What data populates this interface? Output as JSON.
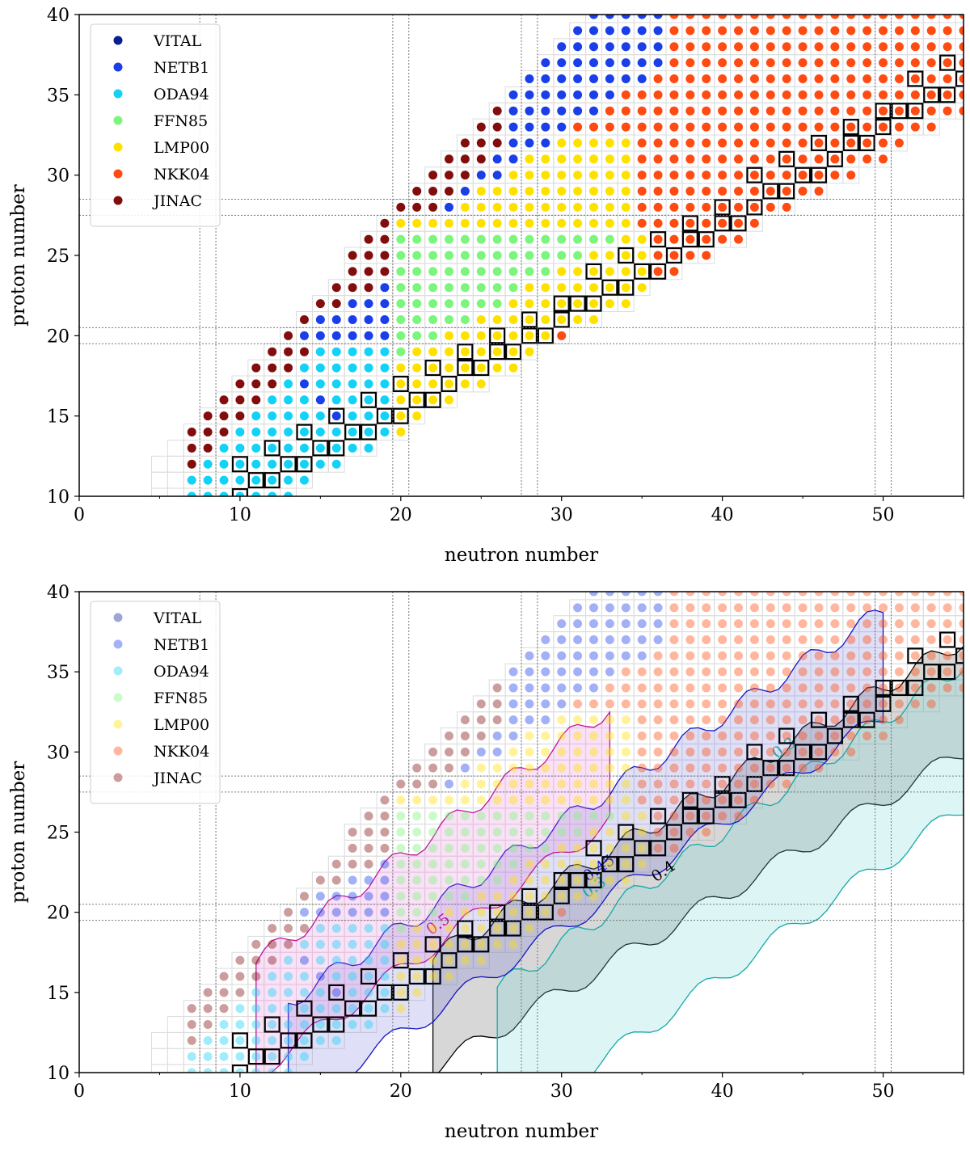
{
  "chart_data": [
    {
      "type": "scatter",
      "panel": "top",
      "xlabel": "neutron number",
      "ylabel": "proton number",
      "xlim": [
        0,
        55
      ],
      "ylim": [
        10,
        40
      ],
      "xticks": [
        "0",
        "10",
        "20",
        "30",
        "40",
        "50"
      ],
      "yticks": [
        "10",
        "15",
        "20",
        "25",
        "30",
        "35",
        "40"
      ],
      "magic_numbers": [
        8,
        20,
        28,
        50
      ],
      "legend": [
        "VITAL",
        "NETB1",
        "ODA94",
        "FFN85",
        "LMP00",
        "NKK04",
        "JINAC"
      ],
      "series_colors": {
        "VITAL": "#0a1f8f",
        "NETB1": "#1a3ee8",
        "ODA94": "#14d2f5",
        "FFN85": "#7cf57c",
        "LMP00": "#ffe100",
        "NKK04": "#ff4a12",
        "JINAC": "#820d0d"
      },
      "stable_isotopes_marked": true,
      "marker_alpha": 1
    },
    {
      "type": "scatter",
      "panel": "bottom",
      "xlabel": "neutron number",
      "ylabel": "proton number",
      "xlim": [
        0,
        55
      ],
      "ylim": [
        10,
        40
      ],
      "xticks": [
        "0",
        "10",
        "20",
        "30",
        "40",
        "50"
      ],
      "yticks": [
        "10",
        "15",
        "20",
        "25",
        "30",
        "35",
        "40"
      ],
      "magic_numbers": [
        8,
        20,
        28,
        50
      ],
      "legend": [
        "VITAL",
        "NETB1",
        "ODA94",
        "FFN85",
        "LMP00",
        "NKK04",
        "JINAC"
      ],
      "stable_isotopes_marked": true,
      "marker_alpha": 0.4,
      "contours": [
        {
          "label": "0.5",
          "color": "#c0139e",
          "label_at": [
            22.5,
            19
          ]
        },
        {
          "label": "0.45",
          "color": "#1414c8",
          "label_at": [
            32.5,
            22.5
          ]
        },
        {
          "label": "0.4",
          "color": "#000000",
          "label_at": [
            36.5,
            22.3
          ]
        },
        {
          "label": "0.3",
          "color": "#17a8a8",
          "label_at": [
            32.2,
            21.3
          ]
        },
        {
          "label": "0.3",
          "color": "#17a8a8",
          "label_at": [
            44,
            30
          ]
        }
      ]
    }
  ]
}
